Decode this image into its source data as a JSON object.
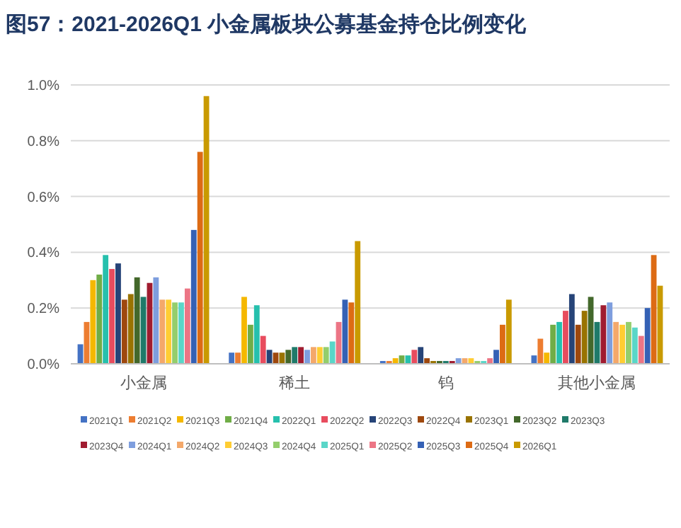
{
  "chart_data": {
    "type": "bar",
    "title": "图57：2021-2026Q1 小金属板块公募基金持仓比例变化",
    "categories": [
      "小金属",
      "稀土",
      "钨",
      "其他小金属"
    ],
    "ylim": [
      0,
      1.0
    ],
    "yticks": [
      {
        "value": 0,
        "label": "0.0%"
      },
      {
        "value": 0.2,
        "label": "0.2%"
      },
      {
        "value": 0.4,
        "label": "0.4%"
      },
      {
        "value": 0.6,
        "label": "0.6%"
      },
      {
        "value": 0.8,
        "label": "0.8%"
      },
      {
        "value": 1.0,
        "label": "1.0%"
      }
    ],
    "grid": "y",
    "legend": "bottom",
    "series": [
      {
        "name": "2021Q1",
        "color": "#4472c4",
        "values": [
          0.07,
          0.04,
          0.01,
          0.03
        ]
      },
      {
        "name": "2021Q2",
        "color": "#ed7d31",
        "values": [
          0.15,
          0.04,
          0.01,
          0.09
        ]
      },
      {
        "name": "2021Q3",
        "color": "#f5b800",
        "values": [
          0.3,
          0.24,
          0.02,
          0.04
        ]
      },
      {
        "name": "2021Q4",
        "color": "#70ad47",
        "values": [
          0.32,
          0.14,
          0.03,
          0.14
        ]
      },
      {
        "name": "2022Q1",
        "color": "#26c0ad",
        "values": [
          0.39,
          0.21,
          0.03,
          0.15
        ]
      },
      {
        "name": "2022Q2",
        "color": "#e84c5e",
        "values": [
          0.34,
          0.1,
          0.05,
          0.19
        ]
      },
      {
        "name": "2022Q3",
        "color": "#264478",
        "values": [
          0.36,
          0.05,
          0.06,
          0.25
        ]
      },
      {
        "name": "2022Q4",
        "color": "#9e480e",
        "values": [
          0.23,
          0.04,
          0.02,
          0.14
        ]
      },
      {
        "name": "2023Q1",
        "color": "#997300",
        "values": [
          0.25,
          0.04,
          0.01,
          0.19
        ]
      },
      {
        "name": "2023Q2",
        "color": "#43682b",
        "values": [
          0.31,
          0.05,
          0.01,
          0.24
        ]
      },
      {
        "name": "2023Q3",
        "color": "#1f7a6a",
        "values": [
          0.24,
          0.06,
          0.01,
          0.15
        ]
      },
      {
        "name": "2023Q4",
        "color": "#a01c30",
        "values": [
          0.29,
          0.06,
          0.01,
          0.21
        ]
      },
      {
        "name": "2024Q1",
        "color": "#7e9ede",
        "values": [
          0.31,
          0.05,
          0.02,
          0.22
        ]
      },
      {
        "name": "2024Q2",
        "color": "#f4a86a",
        "values": [
          0.23,
          0.06,
          0.02,
          0.15
        ]
      },
      {
        "name": "2024Q3",
        "color": "#ffcd33",
        "values": [
          0.23,
          0.06,
          0.02,
          0.14
        ]
      },
      {
        "name": "2024Q4",
        "color": "#94ce6c",
        "values": [
          0.22,
          0.06,
          0.01,
          0.15
        ]
      },
      {
        "name": "2025Q1",
        "color": "#5ad6c8",
        "values": [
          0.22,
          0.08,
          0.01,
          0.13
        ]
      },
      {
        "name": "2025Q2",
        "color": "#ec7585",
        "values": [
          0.27,
          0.15,
          0.02,
          0.1
        ]
      },
      {
        "name": "2025Q3",
        "color": "#3561b5",
        "values": [
          0.48,
          0.23,
          0.05,
          0.2
        ]
      },
      {
        "name": "2025Q4",
        "color": "#dd6b14",
        "values": [
          0.76,
          0.22,
          0.14,
          0.39
        ]
      },
      {
        "name": "2026Q1",
        "color": "#c99a00",
        "values": [
          0.96,
          0.44,
          0.23,
          0.28
        ]
      }
    ]
  }
}
